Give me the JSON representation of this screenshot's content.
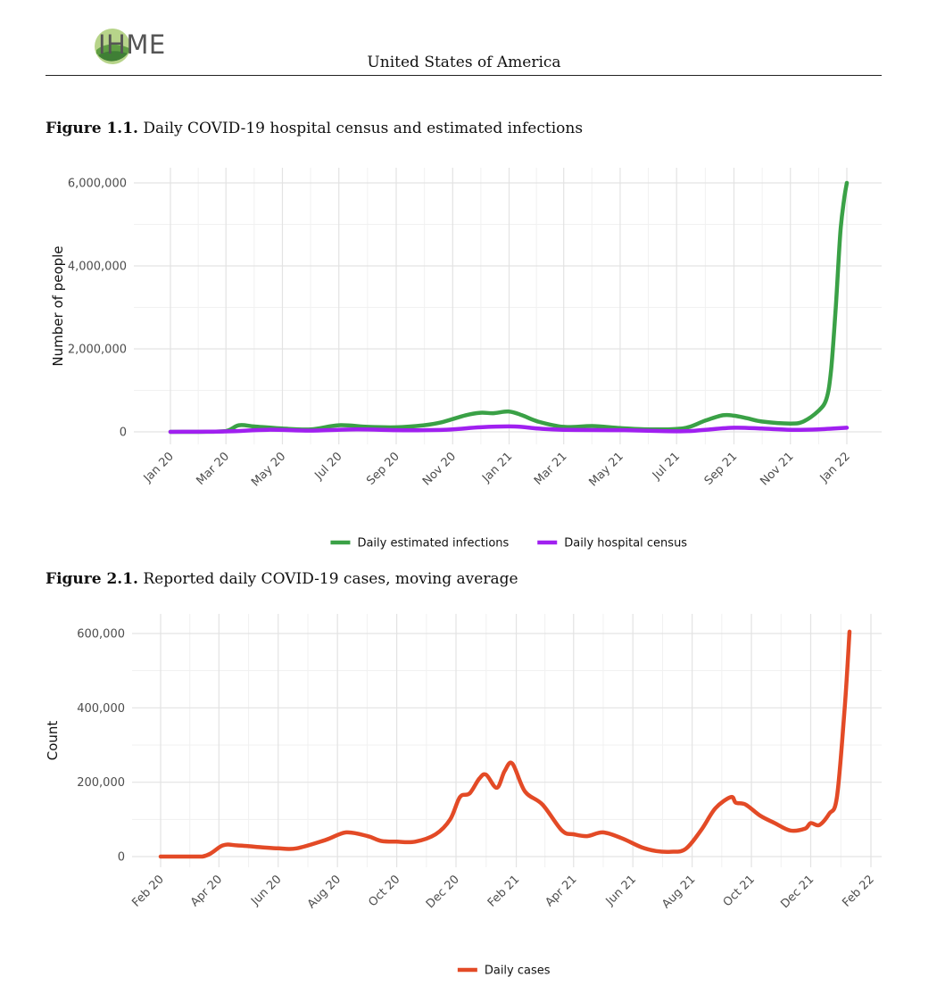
{
  "header": {
    "logo_text": "IHME",
    "country": "United States of America"
  },
  "figures": [
    {
      "number": "Figure 1.1.",
      "caption": "Daily COVID-19 hospital census and estimated infections"
    },
    {
      "number": "Figure 2.1.",
      "caption": "Reported daily COVID-19 cases, moving average"
    }
  ],
  "chart_data": [
    {
      "type": "line",
      "ylabel": "Number of people",
      "xlabel": "",
      "ylim": [
        0,
        6000000
      ],
      "yticks": [
        0,
        2000000,
        4000000,
        6000000
      ],
      "ytick_labels": [
        "0",
        "2,000,000",
        "4,000,000",
        "6,000,000"
      ],
      "xticks": [
        "Jan 20",
        "Mar 20",
        "May 20",
        "Jul 20",
        "Sep 20",
        "Nov 20",
        "Jan 21",
        "Mar 21",
        "May 21",
        "Jul 21",
        "Sep 21",
        "Nov 21",
        "Jan 22"
      ],
      "grid": true,
      "legend": "bottom",
      "colors": {
        "Daily estimated infections": "#3aa146",
        "Daily hospital census": "#a020f0"
      },
      "series": [
        {
          "name": "Daily estimated infections",
          "x": [
            "2020-01-01",
            "2020-02-01",
            "2020-03-01",
            "2020-03-15",
            "2020-04-01",
            "2020-05-01",
            "2020-06-01",
            "2020-07-01",
            "2020-08-01",
            "2020-09-01",
            "2020-10-01",
            "2020-10-20",
            "2020-11-15",
            "2020-12-01",
            "2020-12-15",
            "2021-01-01",
            "2021-01-15",
            "2021-02-01",
            "2021-03-01",
            "2021-04-01",
            "2021-05-01",
            "2021-06-01",
            "2021-07-01",
            "2021-07-15",
            "2021-08-01",
            "2021-08-20",
            "2021-09-01",
            "2021-09-15",
            "2021-10-01",
            "2021-11-01",
            "2021-11-15",
            "2021-12-01",
            "2021-12-10",
            "2021-12-15",
            "2021-12-20",
            "2021-12-25",
            "2021-12-29",
            "2022-01-01"
          ],
          "values": [
            0,
            0,
            20000,
            160000,
            130000,
            80000,
            60000,
            160000,
            120000,
            110000,
            160000,
            230000,
            400000,
            460000,
            450000,
            490000,
            400000,
            250000,
            120000,
            140000,
            90000,
            60000,
            70000,
            120000,
            270000,
            400000,
            390000,
            330000,
            250000,
            200000,
            250000,
            500000,
            800000,
            1500000,
            3000000,
            4800000,
            5600000,
            6000000
          ]
        },
        {
          "name": "Daily hospital census",
          "x": [
            "2020-01-01",
            "2020-03-01",
            "2020-04-15",
            "2020-06-01",
            "2020-07-20",
            "2020-09-01",
            "2020-10-01",
            "2020-11-01",
            "2020-12-01",
            "2021-01-07",
            "2021-02-01",
            "2021-03-01",
            "2021-05-01",
            "2021-06-20",
            "2021-07-15",
            "2021-08-01",
            "2021-09-01",
            "2021-10-01",
            "2021-11-01",
            "2021-12-01",
            "2022-01-01"
          ],
          "values": [
            0,
            10000,
            50000,
            30000,
            60000,
            40000,
            40000,
            60000,
            110000,
            130000,
            80000,
            50000,
            40000,
            15000,
            20000,
            50000,
            100000,
            80000,
            50000,
            60000,
            100000
          ]
        }
      ]
    },
    {
      "type": "line",
      "ylabel": "Count",
      "xlabel": "",
      "ylim": [
        0,
        600000
      ],
      "yticks": [
        0,
        200000,
        400000,
        600000
      ],
      "ytick_labels": [
        "0",
        "200,000",
        "400,000",
        "600,000"
      ],
      "xticks": [
        "Feb 20",
        "Apr 20",
        "Jun 20",
        "Aug 20",
        "Oct 20",
        "Dec 20",
        "Feb 21",
        "Apr 21",
        "Jun 21",
        "Aug 21",
        "Oct 21",
        "Dec 21",
        "Feb 22"
      ],
      "grid": true,
      "legend": "bottom",
      "colors": {
        "Daily cases": "#e34a26"
      },
      "series": [
        {
          "name": "Daily cases",
          "x": [
            "2020-02-01",
            "2020-03-15",
            "2020-04-05",
            "2020-04-20",
            "2020-05-15",
            "2020-06-01",
            "2020-06-20",
            "2020-07-20",
            "2020-08-10",
            "2020-09-01",
            "2020-09-15",
            "2020-10-01",
            "2020-10-20",
            "2020-11-10",
            "2020-11-25",
            "2020-12-05",
            "2020-12-15",
            "2020-12-25",
            "2021-01-01",
            "2021-01-12",
            "2021-01-20",
            "2021-01-28",
            "2021-02-10",
            "2021-02-28",
            "2021-03-20",
            "2021-04-01",
            "2021-04-15",
            "2021-05-01",
            "2021-05-20",
            "2021-06-10",
            "2021-06-25",
            "2021-07-10",
            "2021-07-25",
            "2021-08-10",
            "2021-08-25",
            "2021-09-10",
            "2021-09-15",
            "2021-09-25",
            "2021-10-10",
            "2021-10-25",
            "2021-11-10",
            "2021-11-25",
            "2021-12-01",
            "2021-12-10",
            "2021-12-20",
            "2021-12-28",
            "2022-01-05",
            "2022-01-10"
          ],
          "values": [
            0,
            0,
            30000,
            30000,
            25000,
            22000,
            22000,
            45000,
            65000,
            55000,
            42000,
            40000,
            40000,
            60000,
            100000,
            160000,
            170000,
            210000,
            220000,
            185000,
            230000,
            250000,
            175000,
            140000,
            70000,
            60000,
            55000,
            65000,
            50000,
            25000,
            15000,
            13000,
            20000,
            70000,
            130000,
            160000,
            145000,
            140000,
            110000,
            90000,
            70000,
            75000,
            90000,
            85000,
            115000,
            160000,
            400000,
            605000
          ]
        }
      ]
    }
  ]
}
